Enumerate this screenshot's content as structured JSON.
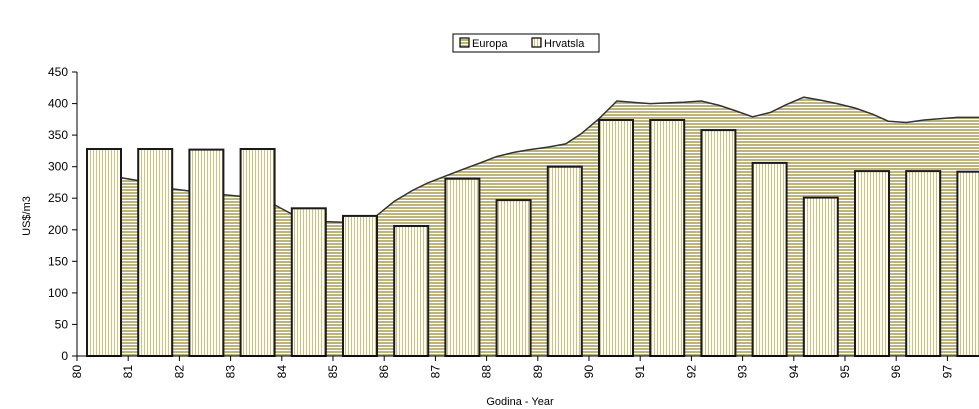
{
  "chart_data": {
    "type": "bar",
    "categories": [
      "80",
      "81",
      "82",
      "83",
      "84",
      "85",
      "86",
      "87",
      "88",
      "89",
      "90",
      "91",
      "92",
      "93",
      "94",
      "95",
      "96",
      "97"
    ],
    "series": [
      {
        "name": "Europa",
        "kind": "area",
        "fill": "#c8c088",
        "x": [
          80.35,
          81.0,
          81.65,
          82.35,
          83.0,
          83.35,
          83.65,
          84.0,
          84.35,
          84.65,
          85.0,
          85.35,
          85.65,
          86.0,
          86.35,
          86.65,
          87.0,
          87.35,
          87.65,
          88.0,
          88.35,
          88.65,
          89.0,
          89.35,
          89.65,
          90.0,
          90.35,
          90.65,
          91.0,
          91.35,
          91.65,
          92.0,
          92.35,
          92.65,
          93.0,
          93.35,
          93.65,
          94.0,
          94.35,
          94.65,
          95.0,
          95.35,
          95.65,
          96.0,
          96.35,
          96.65,
          97.0,
          97.35,
          97.7
        ],
        "values": [
          287,
          278,
          265,
          258,
          253,
          250,
          240,
          225,
          220,
          213,
          212,
          216,
          222,
          245,
          262,
          274,
          285,
          296,
          305,
          316,
          323,
          327,
          331,
          336,
          352,
          376,
          404,
          402,
          400,
          401,
          402,
          404,
          397,
          389,
          379,
          386,
          398,
          410,
          405,
          400,
          393,
          383,
          372,
          370,
          374,
          376,
          378,
          378,
          378
        ]
      },
      {
        "name": "Hrvatsla",
        "kind": "bar",
        "fill": "#fdfbe8",
        "values": [
          328,
          328,
          327,
          328,
          234,
          222,
          206,
          281,
          247,
          300,
          374,
          374,
          358,
          306,
          251,
          293,
          293,
          292
        ]
      }
    ],
    "xlabel": "Godina - Year",
    "ylabel": "US$/m3",
    "ylim": [
      0,
      450
    ],
    "yticks": [
      "0",
      "50",
      "100",
      "150",
      "200",
      "250",
      "300",
      "350",
      "400",
      "450"
    ],
    "grid": false,
    "legend": "top-center"
  }
}
